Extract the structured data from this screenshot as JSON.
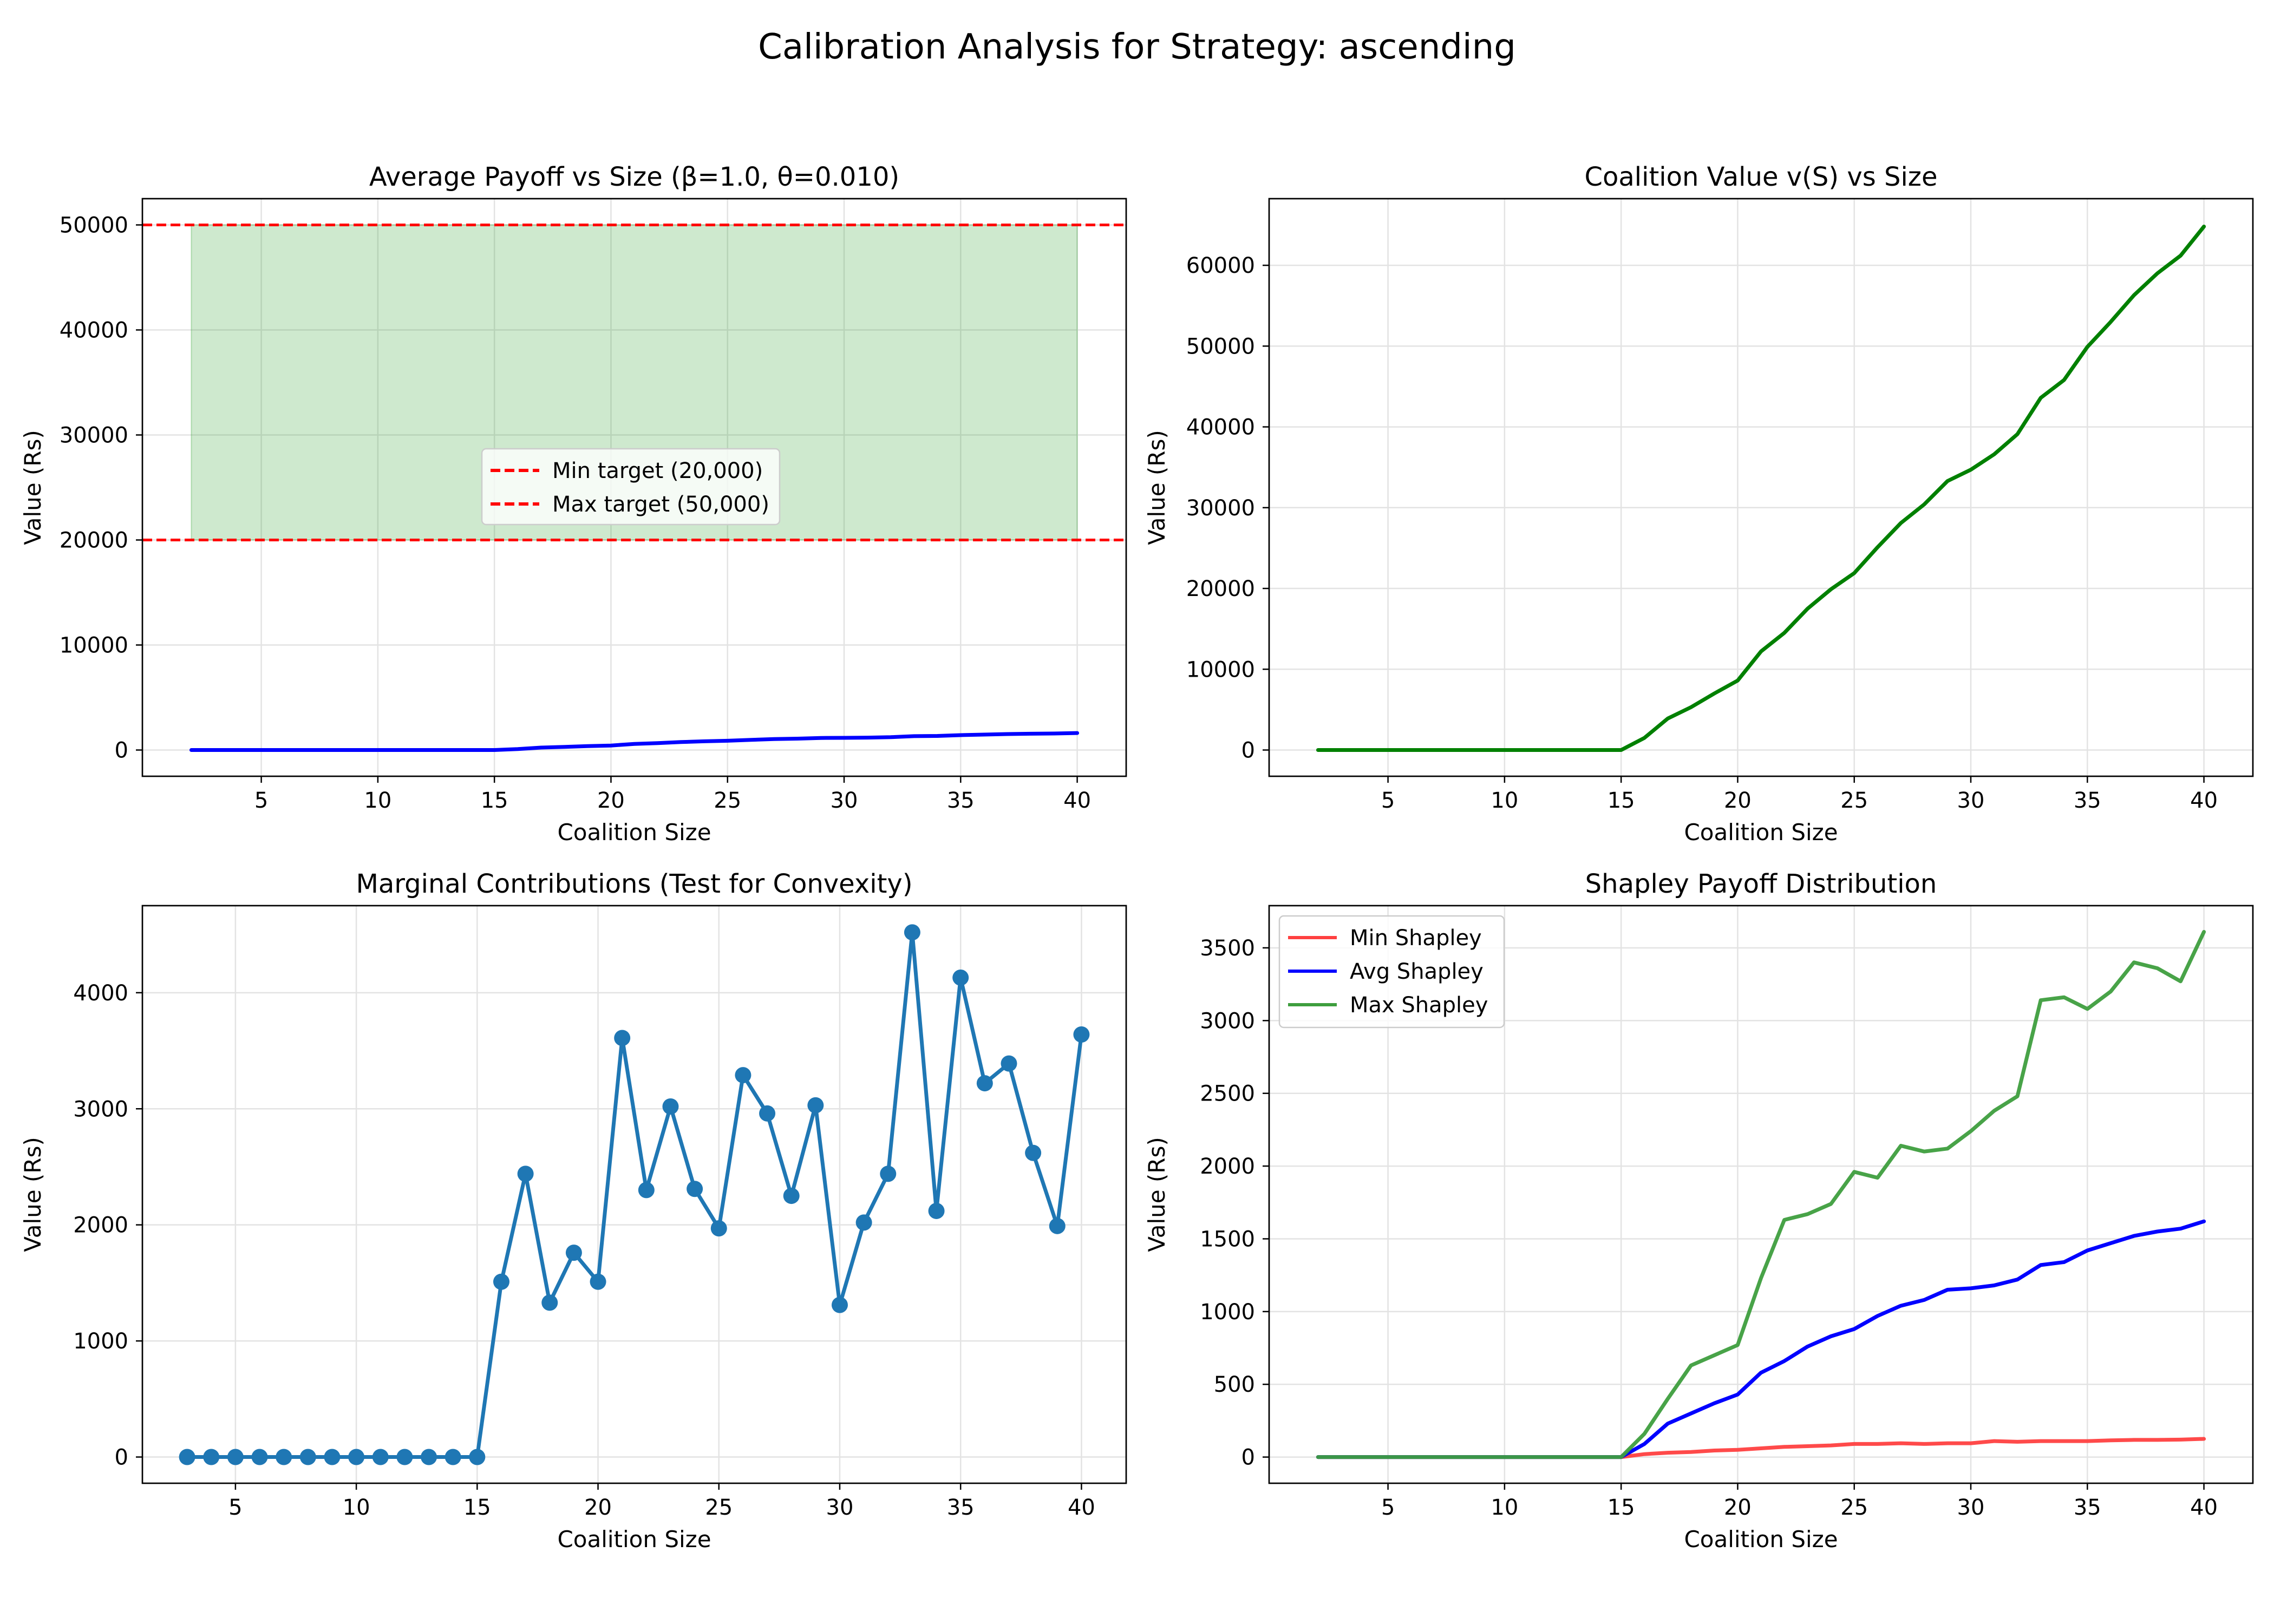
{
  "figure": {
    "suptitle": "Calibration Analysis for Strategy: ascending"
  },
  "chart_data": [
    {
      "type": "line",
      "title": "Average Payoff vs Size (β=1.0, θ=0.010)",
      "xlabel": "Coalition Size",
      "ylabel": "Value (Rs)",
      "xlim": [
        -0.1,
        42.1
      ],
      "ylim": [
        -2500,
        52500
      ],
      "xticks": [
        5,
        10,
        15,
        20,
        25,
        30,
        35,
        40
      ],
      "yticks": [
        0,
        10000,
        20000,
        30000,
        40000,
        50000
      ],
      "grid": true,
      "legend_position": "center",
      "band": {
        "x": [
          2,
          40
        ],
        "y": [
          20000,
          50000
        ],
        "color": "#2ca02c"
      },
      "hlines": [
        {
          "name": "Min target (20,000)",
          "y": 20000,
          "color": "#ff0000"
        },
        {
          "name": "Max target (50,000)",
          "y": 50000,
          "color": "#ff0000"
        }
      ],
      "series": [
        {
          "color": "#0000ff",
          "x": [
            2,
            3,
            4,
            5,
            6,
            7,
            8,
            9,
            10,
            11,
            12,
            13,
            14,
            15,
            16,
            17,
            18,
            19,
            20,
            21,
            22,
            23,
            24,
            25,
            26,
            27,
            28,
            29,
            30,
            31,
            32,
            33,
            34,
            35,
            36,
            37,
            38,
            39,
            40
          ],
          "y": [
            0,
            0,
            0,
            0,
            0,
            0,
            0,
            0,
            0,
            0,
            0,
            0,
            0,
            0,
            90,
            230,
            300,
            370,
            430,
            580,
            660,
            760,
            830,
            880,
            970,
            1040,
            1080,
            1150,
            1160,
            1180,
            1220,
            1320,
            1340,
            1420,
            1470,
            1520,
            1550,
            1570,
            1620
          ]
        }
      ]
    },
    {
      "type": "line",
      "title": "Coalition Value v(S) vs Size",
      "xlabel": "Coalition Size",
      "ylabel": "Value (Rs)",
      "xlim": [
        -0.1,
        42.1
      ],
      "ylim": [
        -3250,
        68250
      ],
      "xticks": [
        5,
        10,
        15,
        20,
        25,
        30,
        35,
        40
      ],
      "yticks": [
        0,
        10000,
        20000,
        30000,
        40000,
        50000,
        60000
      ],
      "grid": true,
      "series": [
        {
          "color": "#008000",
          "x": [
            2,
            3,
            4,
            5,
            6,
            7,
            8,
            9,
            10,
            11,
            12,
            13,
            14,
            15,
            16,
            17,
            18,
            19,
            20,
            21,
            22,
            23,
            24,
            25,
            26,
            27,
            28,
            29,
            30,
            31,
            32,
            33,
            34,
            35,
            36,
            37,
            38,
            39,
            40
          ],
          "y": [
            0,
            0,
            0,
            0,
            0,
            0,
            0,
            0,
            0,
            0,
            0,
            0,
            0,
            0,
            1500,
            3900,
            5300,
            7000,
            8600,
            12200,
            14500,
            17500,
            19900,
            21900,
            25100,
            28100,
            30400,
            33300,
            34700,
            36600,
            39100,
            43600,
            45800,
            49900,
            53000,
            56300,
            59000,
            61200,
            64800
          ]
        }
      ]
    },
    {
      "type": "line",
      "title": "Marginal Contributions (Test for Convexity)",
      "xlabel": "Coalition Size",
      "ylabel": "Value (Rs)",
      "xlim": [
        1.15,
        41.85
      ],
      "ylim": [
        -226,
        4750
      ],
      "xticks": [
        5,
        10,
        15,
        20,
        25,
        30,
        35,
        40
      ],
      "yticks": [
        0,
        1000,
        2000,
        3000,
        4000
      ],
      "grid": true,
      "series": [
        {
          "color": "#1f77b4",
          "markers": true,
          "x": [
            3,
            4,
            5,
            6,
            7,
            8,
            9,
            10,
            11,
            12,
            13,
            14,
            15,
            16,
            17,
            18,
            19,
            20,
            21,
            22,
            23,
            24,
            25,
            26,
            27,
            28,
            29,
            30,
            31,
            32,
            33,
            34,
            35,
            36,
            37,
            38,
            39,
            40
          ],
          "y": [
            0,
            0,
            0,
            0,
            0,
            0,
            0,
            0,
            0,
            0,
            0,
            0,
            0,
            1510,
            2440,
            1330,
            1760,
            1510,
            3610,
            2300,
            3020,
            2310,
            1970,
            3290,
            2960,
            2250,
            3030,
            1310,
            2020,
            2440,
            4520,
            2120,
            4130,
            3220,
            3390,
            2620,
            1990,
            3640
          ]
        }
      ]
    },
    {
      "type": "line",
      "title": "Shapley Payoff Distribution",
      "xlabel": "Coalition Size",
      "ylabel": "Value (Rs)",
      "xlim": [
        -0.1,
        42.1
      ],
      "ylim": [
        -180,
        3790
      ],
      "xticks": [
        5,
        10,
        15,
        20,
        25,
        30,
        35,
        40
      ],
      "yticks": [
        0,
        500,
        1000,
        1500,
        2000,
        2500,
        3000,
        3500
      ],
      "grid": true,
      "legend_position": "upper left",
      "series": [
        {
          "name": "Min Shapley",
          "color": "#ff4040",
          "x": [
            2,
            3,
            4,
            5,
            6,
            7,
            8,
            9,
            10,
            11,
            12,
            13,
            14,
            15,
            16,
            17,
            18,
            19,
            20,
            21,
            22,
            23,
            24,
            25,
            26,
            27,
            28,
            29,
            30,
            31,
            32,
            33,
            34,
            35,
            36,
            37,
            38,
            39,
            40
          ],
          "y": [
            0,
            0,
            0,
            0,
            0,
            0,
            0,
            0,
            0,
            0,
            0,
            0,
            0,
            0,
            20,
            30,
            35,
            45,
            50,
            60,
            70,
            75,
            80,
            90,
            90,
            95,
            90,
            95,
            95,
            110,
            105,
            110,
            110,
            110,
            115,
            118,
            118,
            120,
            125
          ]
        },
        {
          "name": "Avg Shapley",
          "color": "#0000ff",
          "x": [
            2,
            3,
            4,
            5,
            6,
            7,
            8,
            9,
            10,
            11,
            12,
            13,
            14,
            15,
            16,
            17,
            18,
            19,
            20,
            21,
            22,
            23,
            24,
            25,
            26,
            27,
            28,
            29,
            30,
            31,
            32,
            33,
            34,
            35,
            36,
            37,
            38,
            39,
            40
          ],
          "y": [
            0,
            0,
            0,
            0,
            0,
            0,
            0,
            0,
            0,
            0,
            0,
            0,
            0,
            0,
            90,
            230,
            300,
            370,
            430,
            580,
            660,
            760,
            830,
            880,
            970,
            1040,
            1080,
            1150,
            1160,
            1180,
            1220,
            1320,
            1340,
            1420,
            1470,
            1520,
            1550,
            1570,
            1620
          ]
        },
        {
          "name": "Max Shapley",
          "color": "#3e9e3e",
          "x": [
            2,
            3,
            4,
            5,
            6,
            7,
            8,
            9,
            10,
            11,
            12,
            13,
            14,
            15,
            16,
            17,
            18,
            19,
            20,
            21,
            22,
            23,
            24,
            25,
            26,
            27,
            28,
            29,
            30,
            31,
            32,
            33,
            34,
            35,
            36,
            37,
            38,
            39,
            40
          ],
          "y": [
            0,
            0,
            0,
            0,
            0,
            0,
            0,
            0,
            0,
            0,
            0,
            0,
            0,
            0,
            160,
            400,
            630,
            700,
            770,
            1230,
            1630,
            1670,
            1740,
            1960,
            1920,
            2140,
            2100,
            2120,
            2240,
            2380,
            2480,
            3140,
            3160,
            3080,
            3200,
            3400,
            3360,
            3270,
            3610
          ]
        }
      ]
    }
  ]
}
